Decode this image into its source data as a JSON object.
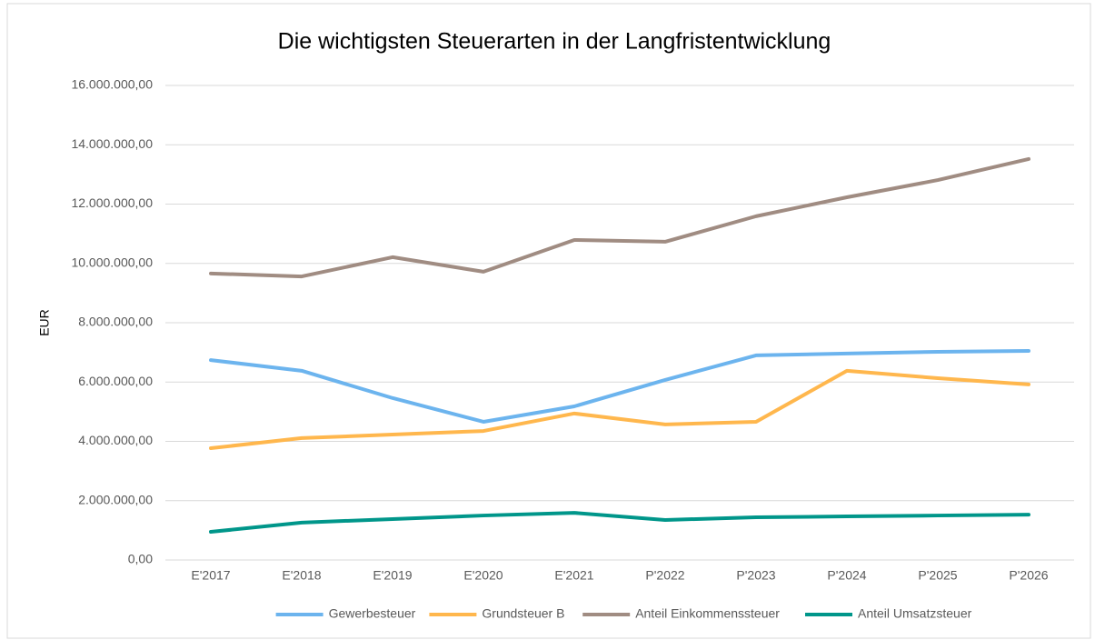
{
  "chart_data": {
    "type": "line",
    "title": "Die wichtigsten Steuerarten in der Langfristentwicklung",
    "y_label": "EUR",
    "categories": [
      "E'2017",
      "E'2018",
      "E'2019",
      "E'2020",
      "E'2021",
      "P'2022",
      "P'2023",
      "P'2024",
      "P'2025",
      "P'2026"
    ],
    "series": [
      {
        "name": "Gewerbesteuer",
        "color": "#6cb4ee",
        "values": [
          6740000,
          6380000,
          5460000,
          4660000,
          5180000,
          6070000,
          6900000,
          6960000,
          7020000,
          7050000
        ]
      },
      {
        "name": "Grundsteuer B",
        "color": "#ffb74d",
        "values": [
          3770000,
          4110000,
          4230000,
          4350000,
          4940000,
          4570000,
          4660000,
          6380000,
          6130000,
          5920000
        ]
      },
      {
        "name": "Anteil Einkommenssteuer",
        "color": "#a08c82",
        "values": [
          9660000,
          9560000,
          10210000,
          9720000,
          10790000,
          10730000,
          11590000,
          12230000,
          12810000,
          13520000
        ]
      },
      {
        "name": "Anteil Umsatzsteuer",
        "color": "#00968a",
        "values": [
          950000,
          1260000,
          1380000,
          1500000,
          1590000,
          1350000,
          1440000,
          1470000,
          1500000,
          1530000
        ]
      }
    ],
    "ylim": [
      0,
      16000000
    ],
    "yticks": [
      {
        "value": 0,
        "label": "0,00"
      },
      {
        "value": 2000000,
        "label": "2.000.000,00"
      },
      {
        "value": 4000000,
        "label": "4.000.000,00"
      },
      {
        "value": 6000000,
        "label": "6.000.000,00"
      },
      {
        "value": 8000000,
        "label": "8.000.000,00"
      },
      {
        "value": 10000000,
        "label": "10.000.000,00"
      },
      {
        "value": 12000000,
        "label": "12.000.000,00"
      },
      {
        "value": 14000000,
        "label": "14.000.000,00"
      },
      {
        "value": 16000000,
        "label": "16.000.000,00"
      }
    ],
    "grid": true,
    "legend": "bottom"
  }
}
